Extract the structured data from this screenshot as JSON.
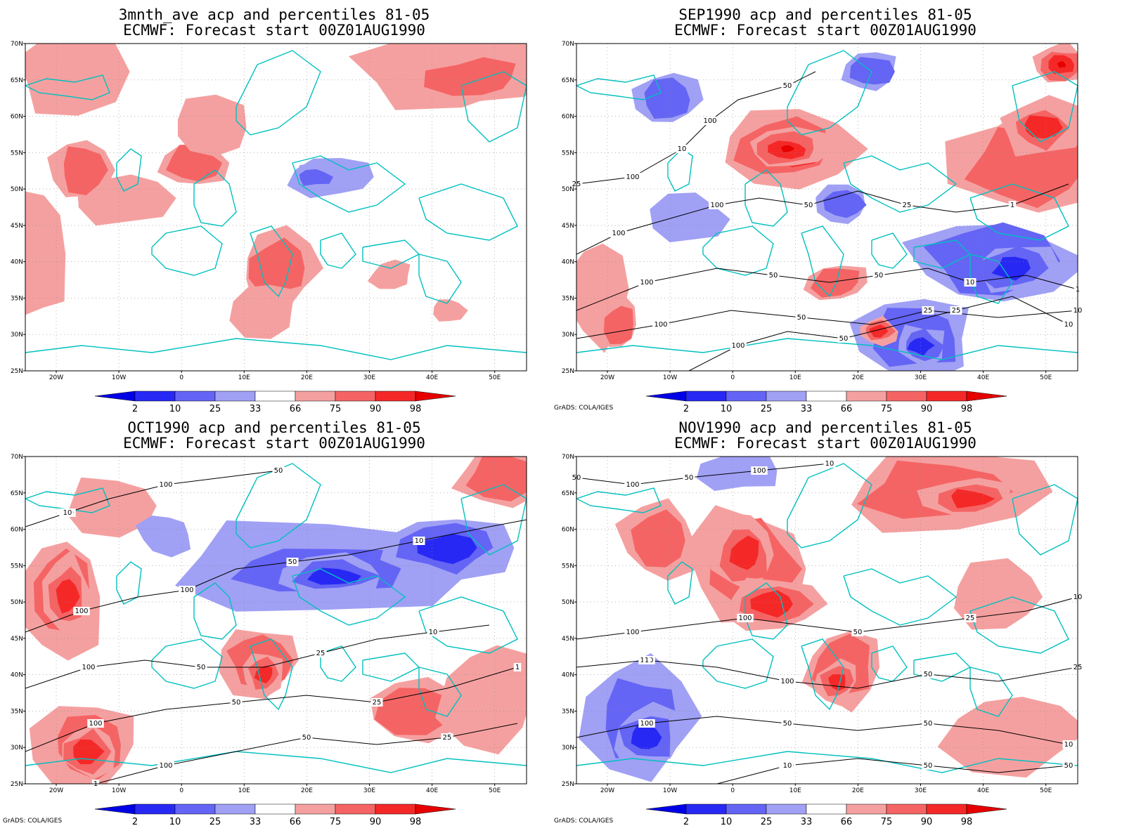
{
  "credit": "GrADS: COLA/IGES",
  "colorbar": {
    "levels": [
      "2",
      "10",
      "25",
      "33",
      "66",
      "75",
      "90",
      "98"
    ],
    "colors": {
      "lt2": "#0000e6",
      "b2_10": "#2828f5",
      "b10_25": "#6464f5",
      "b25_33": "#a0a0f5",
      "mid": "#ffffff",
      "r66_75": "#f5a0a0",
      "r75_90": "#f56464",
      "r90_98": "#f52828",
      "gt98": "#e60000"
    }
  },
  "map": {
    "lat_labels": [
      "70N",
      "65N",
      "60N",
      "55N",
      "50N",
      "45N",
      "40N",
      "35N",
      "30N",
      "25N"
    ],
    "lon_labels": [
      "20W",
      "10W",
      "0",
      "10E",
      "20E",
      "30E",
      "40E",
      "50E"
    ],
    "coast_color": "#00c0c0"
  },
  "panels": [
    {
      "title1": "3mnth_ave acp and percentiles 81-05",
      "title2": "ECMWF: Forecast start 00Z01AUG1990",
      "show_credit": false,
      "contour_labels": []
    },
    {
      "title1": "SEP1990 acp and percentiles 81-05",
      "title2": "ECMWF: Forecast start 00Z01AUG1990",
      "show_credit": true,
      "contour_labels": [
        "100",
        "100",
        "100",
        "100",
        "100",
        "100",
        "100",
        "50",
        "50",
        "50",
        "50",
        "50",
        "50",
        "25",
        "25",
        "25",
        "25",
        "10",
        "10",
        "10",
        "10",
        "1",
        "1"
      ]
    },
    {
      "title1": "OCT1990 acp and percentiles 81-05",
      "title2": "ECMWF: Forecast start 00Z01AUG1990",
      "show_credit": true,
      "contour_labels": [
        "100",
        "100",
        "100",
        "100",
        "100",
        "100",
        "100",
        "50",
        "50",
        "50",
        "50",
        "50",
        "25",
        "25",
        "25",
        "10",
        "10",
        "10",
        "1",
        "1"
      ]
    },
    {
      "title1": "NOV1990 acp and percentiles 81-05",
      "title2": "ECMWF: Forecast start 00Z01AUG1990",
      "show_credit": true,
      "contour_labels": [
        "100",
        "100",
        "100",
        "100",
        "100",
        "100",
        "100",
        "100",
        "50",
        "50",
        "50",
        "50",
        "50",
        "50",
        "50",
        "50",
        "25",
        "25",
        "10",
        "10",
        "10",
        "10",
        "1"
      ]
    }
  ]
}
